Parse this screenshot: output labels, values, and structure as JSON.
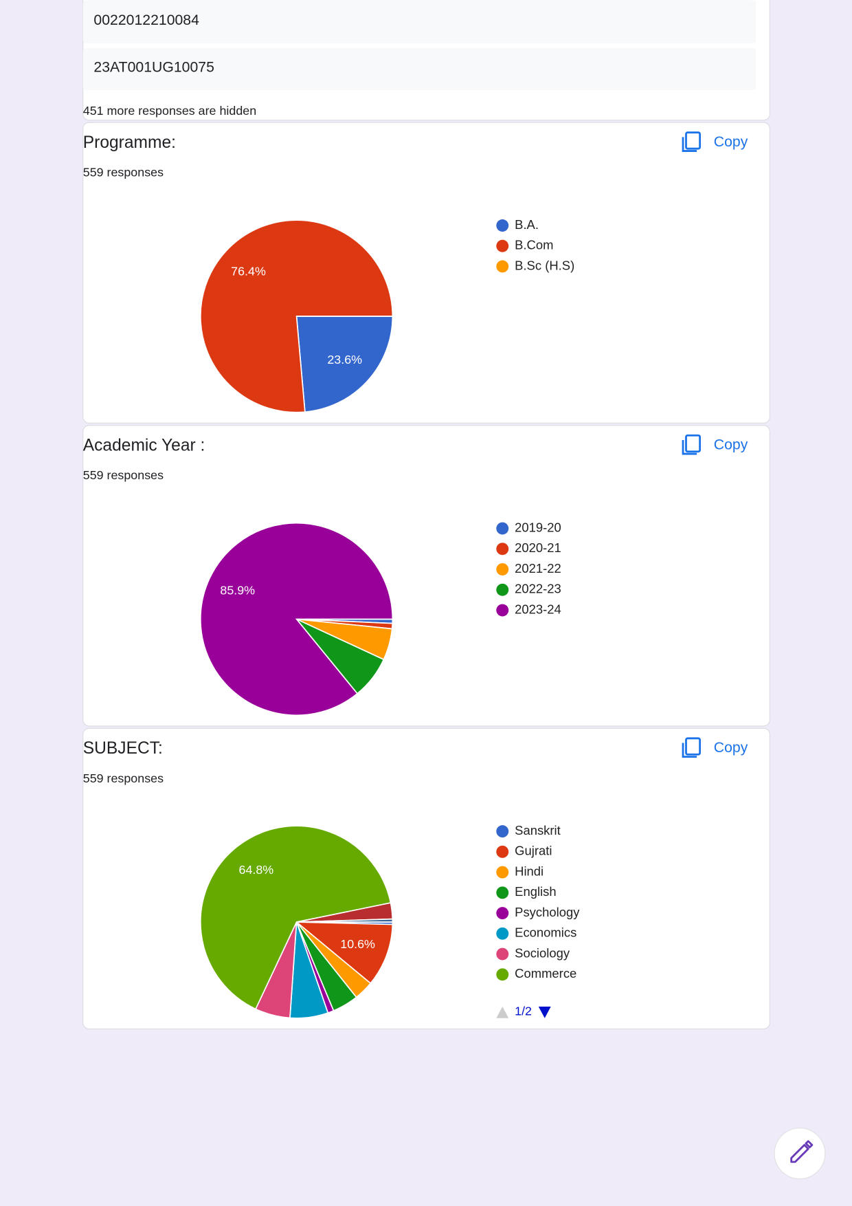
{
  "responses": {
    "items": [
      "0022012210084",
      "23AT001UG10075"
    ],
    "hidden_note": "451 more responses are hidden"
  },
  "copy_label": "Copy",
  "legend_pager": "1/2",
  "chart_data": [
    {
      "type": "pie",
      "title": "Programme:",
      "subtitle": "559 responses",
      "categories": [
        "B.A.",
        "B.Com",
        "B.Sc (H.S)"
      ],
      "colors": [
        "#3366cc",
        "#dc3912",
        "#ff9900"
      ],
      "values": [
        23.6,
        76.4,
        0
      ],
      "value_labels": [
        "23.6%",
        "76.4%",
        null
      ]
    },
    {
      "type": "pie",
      "title": "Academic Year :",
      "subtitle": "559 responses",
      "categories": [
        "2019-20",
        "2020-21",
        "2021-22",
        "2022-23",
        "2023-24"
      ],
      "colors": [
        "#3366cc",
        "#dc3912",
        "#ff9900",
        "#109618",
        "#990099"
      ],
      "values": [
        0.7,
        0.9,
        5.3,
        7.2,
        85.9
      ],
      "value_labels": [
        null,
        null,
        null,
        null,
        "85.9%"
      ]
    },
    {
      "type": "pie",
      "title": "SUBJECT:",
      "subtitle": "559 responses",
      "categories": [
        "Sanskrit",
        "Gujrati",
        "Hindi",
        "English",
        "Psychology",
        "Economics",
        "Sociology",
        "Commerce",
        null,
        null
      ],
      "colors": [
        "#3366cc",
        "#dc3912",
        "#ff9900",
        "#109618",
        "#990099",
        "#0099c6",
        "#dd4477",
        "#66aa00",
        "#b82e2e",
        "#316395"
      ],
      "values": [
        0.4,
        10.6,
        3.3,
        4.4,
        1.0,
        6.4,
        5.9,
        64.8,
        2.7,
        0.5
      ],
      "value_labels": [
        null,
        "10.6%",
        null,
        null,
        null,
        null,
        null,
        "64.8%",
        null,
        null
      ]
    }
  ]
}
